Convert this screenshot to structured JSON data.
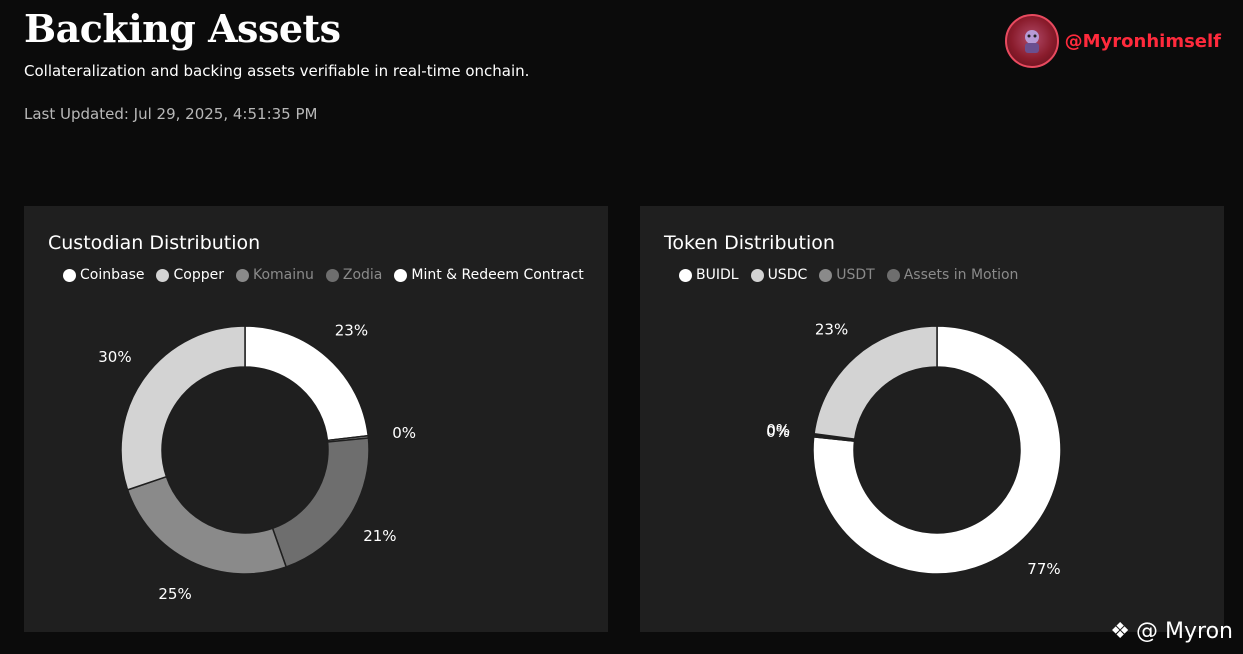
{
  "header": {
    "title": "Backing Assets",
    "subtitle": "Collateralization and backing assets verifiable in real-time onchain.",
    "updated": "Last Updated: Jul 29, 2025, 4:51:35 PM",
    "handle": "@Myronhimself",
    "handle_color": "#ff2a3c"
  },
  "watermark": {
    "icon": "binance-diamond-icon",
    "text": "@ Myron"
  },
  "chart_data": [
    {
      "type": "donut",
      "title": "Custodian Distribution",
      "legend_placement": "top",
      "series": [
        {
          "name": "Coinbase",
          "value": 23,
          "label": "23%",
          "color": "#ffffff",
          "legend_color": "#ffffff",
          "active": true
        },
        {
          "name": "Copper",
          "value": 30,
          "label": "30%",
          "color": "#d3d3d3",
          "legend_color": "#d3d3d3",
          "active": true
        },
        {
          "name": "Komainu",
          "value": 25,
          "label": "25%",
          "color": "#8a8a8a",
          "legend_color": "#8a8a8a",
          "active": false
        },
        {
          "name": "Zodia",
          "value": 21,
          "label": "21%",
          "color": "#6e6e6e",
          "legend_color": "#6e6e6e",
          "active": false
        },
        {
          "name": "Mint & Redeem Contract",
          "value": 0.3,
          "label": "0%",
          "color": "#8a8a8a",
          "legend_color": "#ffffff",
          "active": true
        }
      ],
      "slice_order": [
        "Coinbase",
        "Mint & Redeem Contract",
        "Zodia",
        "Komainu",
        "Copper"
      ]
    },
    {
      "type": "donut",
      "title": "Token Distribution",
      "legend_placement": "top",
      "series": [
        {
          "name": "BUIDL",
          "value": 77,
          "label": "77%",
          "color": "#ffffff",
          "legend_color": "#ffffff",
          "active": true
        },
        {
          "name": "USDC",
          "value": 23,
          "label": "23%",
          "color": "#d3d3d3",
          "legend_color": "#d3d3d3",
          "active": true
        },
        {
          "name": "USDT",
          "value": 0.2,
          "label": "0%",
          "color": "#8a8a8a",
          "legend_color": "#8a8a8a",
          "active": false
        },
        {
          "name": "Assets in Motion",
          "value": 0.2,
          "label": "0%",
          "color": "#6e6e6e",
          "legend_color": "#6e6e6e",
          "active": false
        }
      ],
      "slice_order": [
        "BUIDL",
        "USDT",
        "Assets in Motion",
        "USDC"
      ]
    }
  ]
}
